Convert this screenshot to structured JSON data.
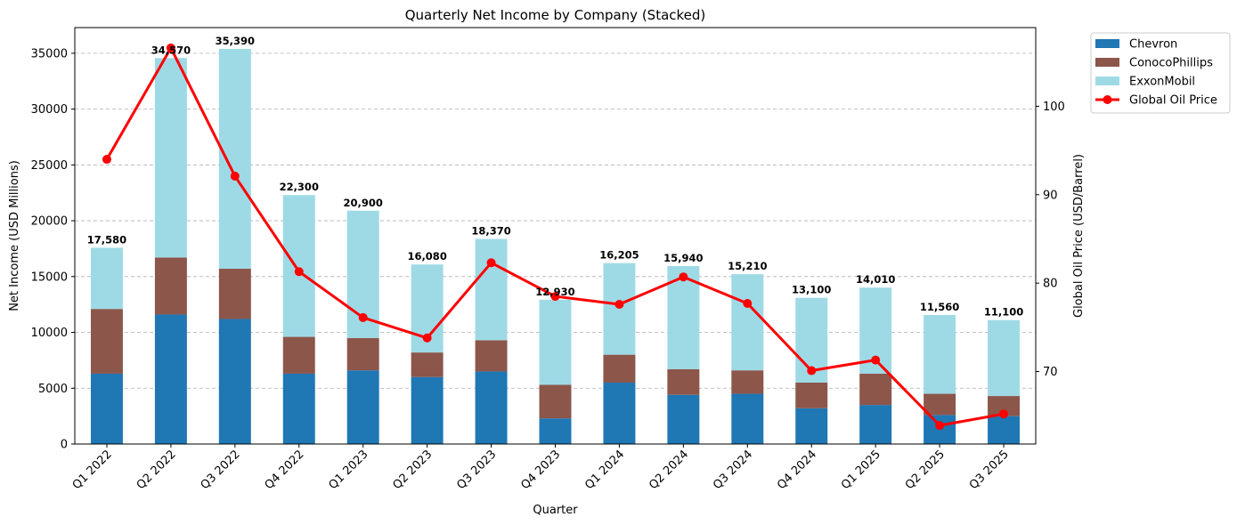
{
  "chart_data": {
    "type": "bar",
    "stacked": true,
    "title": "Quarterly Net Income by Company (Stacked)",
    "xlabel": "Quarter",
    "ylabel": "Net Income (USD Millions)",
    "y2label": "Global Oil Price (USD/Barrel)",
    "categories": [
      "Q1 2022",
      "Q2 2022",
      "Q3 2022",
      "Q4 2022",
      "Q1 2023",
      "Q2 2023",
      "Q3 2023",
      "Q4 2023",
      "Q1 2024",
      "Q2 2024",
      "Q3 2024",
      "Q4 2024",
      "Q1 2025",
      "Q2 2025",
      "Q3 2025"
    ],
    "series": [
      {
        "name": "Chevron",
        "color": "#1f77b4",
        "values": [
          6300,
          11600,
          11200,
          6300,
          6600,
          6000,
          6500,
          2300,
          5500,
          4400,
          4500,
          3200,
          3500,
          2600,
          2500
        ]
      },
      {
        "name": "ConocoPhillips",
        "color": "#8c564b",
        "values": [
          5800,
          5100,
          4500,
          3300,
          2900,
          2200,
          2800,
          3000,
          2500,
          2300,
          2100,
          2300,
          2800,
          1900,
          1800
        ]
      },
      {
        "name": "ExxonMobil",
        "color": "#9edae5",
        "values": [
          5480,
          17870,
          19690,
          12700,
          11400,
          7880,
          9070,
          7630,
          8205,
          9240,
          8610,
          7600,
          7710,
          7060,
          6800
        ]
      }
    ],
    "totals": [
      "17,580",
      "34,570",
      "35,390",
      "22,300",
      "20,900",
      "16,080",
      "18,370",
      "12,930",
      "16,205",
      "15,940",
      "15,210",
      "13,100",
      "14,010",
      "11,560",
      "11,100"
    ],
    "line_series": {
      "name": "Global Oil Price",
      "color": "#ff0000",
      "values": [
        94.0,
        106.6,
        92.1,
        81.3,
        76.1,
        73.8,
        82.3,
        78.5,
        77.6,
        80.7,
        77.7,
        70.1,
        71.3,
        63.9,
        65.2
      ]
    },
    "ylim": [
      0,
      37300
    ],
    "yticks": [
      0,
      5000,
      10000,
      15000,
      20000,
      25000,
      30000,
      35000
    ],
    "y2lim": [
      61.8,
      108.9
    ],
    "y2ticks": [
      70,
      80,
      90,
      100
    ],
    "grid": "y dashed",
    "legend_position": "outside top-right"
  }
}
